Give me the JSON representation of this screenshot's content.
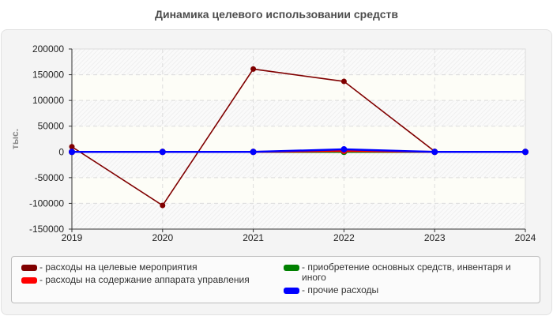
{
  "title": "Динамика целевого использовании средств",
  "chart_data": {
    "type": "line",
    "title": "Динамика целевого использовании средств",
    "xlabel": "",
    "ylabel": "тыс.",
    "x": [
      "2019",
      "2020",
      "2021",
      "2022",
      "2023",
      "2024"
    ],
    "ylim": [
      -150000,
      200000
    ],
    "yticks": [
      200000,
      150000,
      100000,
      50000,
      0,
      -50000,
      -100000,
      -150000
    ],
    "grid": true,
    "legend_position": "bottom",
    "series": [
      {
        "name": "расходы на целевые мероприятия",
        "color": "#800000",
        "values": [
          10000,
          -104000,
          161000,
          137000,
          1000,
          null
        ]
      },
      {
        "name": "расходы на содержание аппарата управления",
        "color": "#ff0000",
        "values": [
          0,
          0,
          0,
          2000,
          0,
          0
        ]
      },
      {
        "name": "приобретение основных средств, инвентаря и иного",
        "color": "#008000",
        "values": [
          0,
          0,
          0,
          0,
          0,
          0
        ]
      },
      {
        "name": "прочие расходы",
        "color": "#0000ff",
        "values": [
          0,
          0,
          0,
          5000,
          0,
          0
        ]
      }
    ]
  },
  "legend": {
    "items": [
      {
        "label": "- расходы на целевые мероприятия",
        "color": "#800000"
      },
      {
        "label": "- расходы на содержание аппарата управления",
        "color": "#ff0000"
      },
      {
        "label": "- приобретение основных средств, инвентаря и иного",
        "color": "#008000"
      },
      {
        "label": "- прочие расходы",
        "color": "#0000ff"
      }
    ]
  }
}
